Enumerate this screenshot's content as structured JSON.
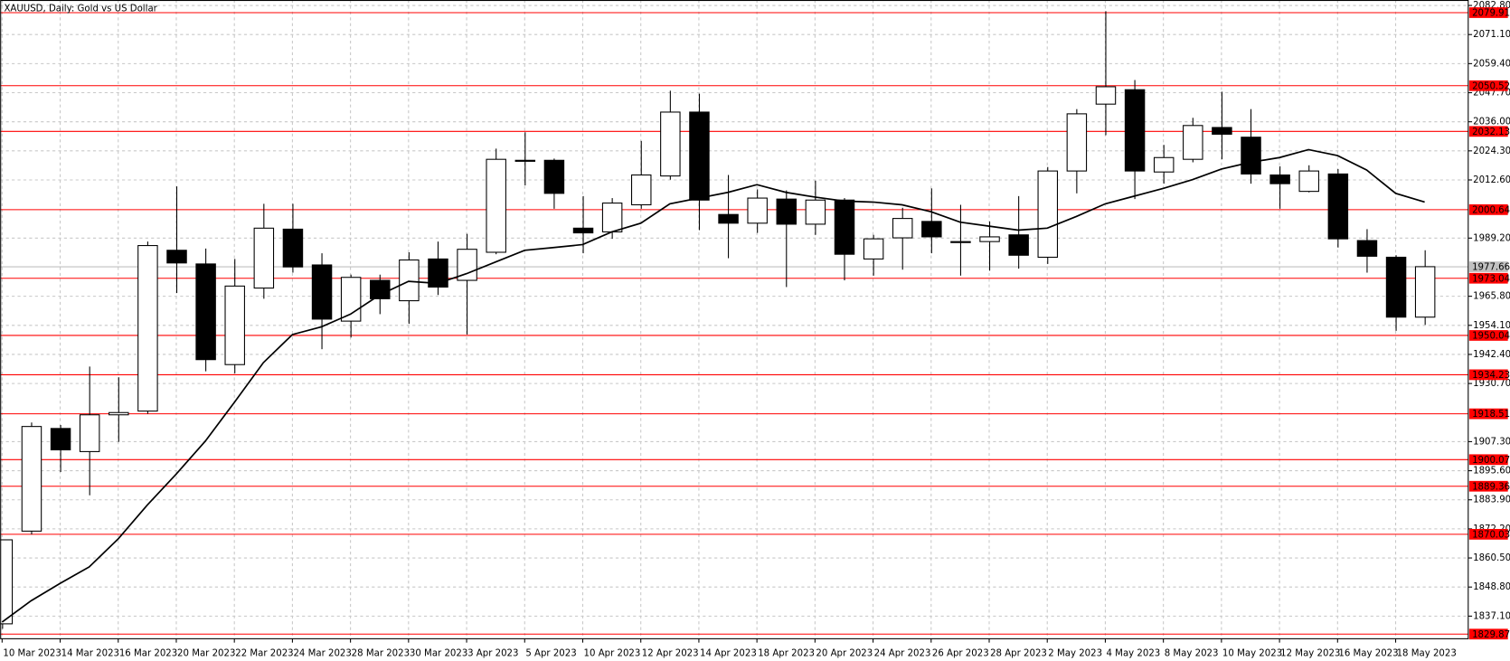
{
  "chart_data": {
    "type": "candlestick",
    "title": "XAUUSD, Daily:  Gold vs US Dollar",
    "categories": [
      "10 Mar 2023",
      null,
      "14 Mar 2023",
      null,
      "16 Mar 2023",
      null,
      "20 Mar 2023",
      null,
      "22 Mar 2023",
      null,
      "24 Mar 2023",
      null,
      "28 Mar 2023",
      null,
      "30 Mar 2023",
      null,
      "3 Apr 2023",
      null,
      "5 Apr 2023",
      null,
      "10 Apr 2023",
      null,
      "12 Apr 2023",
      null,
      "14 Apr 2023",
      null,
      "18 Apr 2023",
      null,
      "20 Apr 2023",
      null,
      "24 Apr 2023",
      null,
      "26 Apr 2023",
      null,
      "28 Apr 2023",
      null,
      "2 May 2023",
      null,
      "4 May 2023",
      null,
      "8 May 2023",
      null,
      "10 May 2023",
      null,
      "12 May 2023",
      null,
      "16 May 2023",
      null,
      "18 May 2023",
      null
    ],
    "open": [
      1834.0,
      1871.3,
      1912.6,
      1903.3,
      1918.1,
      1919.6,
      1984.3,
      1978.8,
      1938.3,
      1969.1,
      1992.8,
      1978.4,
      1955.8,
      1972.2,
      1964.0,
      1980.8,
      1972.2,
      1983.5,
      2020.5,
      2020.5,
      1993.2,
      1991.7,
      2002.6,
      2014.2,
      2039.9,
      1998.7,
      1995.2,
      2004.9,
      1994.8,
      2004.5,
      1980.8,
      1989.3,
      1995.9,
      1987.4,
      1987.8,
      1990.5,
      1981.5,
      2016.2,
      2043.1,
      2048.9,
      2015.8,
      2020.9,
      2033.7,
      2029.8,
      2014.6,
      2008.0,
      2015.0,
      1988.2,
      1981.5,
      1957.4
    ],
    "high": [
      1868.0,
      1915.0,
      1914.0,
      1937.5,
      1933.2,
      1987.8,
      2010.0,
      1985.0,
      1980.8,
      2003.0,
      2003.0,
      1983.1,
      1974.5,
      1974.5,
      1983.5,
      1987.8,
      1990.9,
      2025.2,
      2031.8,
      2021.2,
      2006.1,
      2005.3,
      2028.3,
      2048.5,
      2047.3,
      2014.6,
      2008.8,
      2008.4,
      2012.3,
      2005.3,
      1990.5,
      2001.4,
      2009.2,
      2002.6,
      1995.9,
      2006.1,
      2017.8,
      2041.1,
      2080.5,
      2052.8,
      2026.7,
      2037.6,
      2048.1,
      2041.1,
      2018.1,
      2018.5,
      2017.0,
      1992.8,
      1982.3,
      1984.3
    ],
    "low": [
      1832.0,
      1870.0,
      1895.1,
      1885.7,
      1907.2,
      1918.5,
      1967.1,
      1935.6,
      1934.8,
      1964.8,
      1975.3,
      1944.5,
      1949.2,
      1958.6,
      1954.7,
      1966.3,
      1950.4,
      1982.7,
      2010.4,
      2001.0,
      1983.1,
      1988.9,
      2001.0,
      2012.7,
      1992.4,
      1981.1,
      1991.3,
      1969.5,
      1990.5,
      1972.2,
      1974.1,
      1976.5,
      1983.1,
      1974.1,
      1976.1,
      1976.9,
      1978.8,
      2007.2,
      2030.6,
      2004.9,
      2011.1,
      2019.7,
      2020.9,
      2011.1,
      2001.0,
      2007.6,
      1985.4,
      1975.3,
      1951.9,
      1954.3
    ],
    "close": [
      1867.8,
      1913.4,
      1904.0,
      1918.1,
      1919.0,
      1986.2,
      1979.2,
      1940.3,
      1969.9,
      1993.2,
      1977.6,
      1956.6,
      1973.4,
      1964.8,
      1980.4,
      1969.5,
      1984.7,
      2020.9,
      2020.1,
      2007.2,
      1991.3,
      2003.3,
      2014.6,
      2039.9,
      2004.5,
      1995.2,
      2005.3,
      1994.8,
      2004.5,
      1982.7,
      1988.9,
      1997.1,
      1989.7,
      1987.8,
      1989.7,
      1982.3,
      2016.2,
      2039.2,
      2050.1,
      2016.2,
      2021.6,
      2034.5,
      2031.0,
      2015.0,
      2011.1,
      2016.2,
      1988.9,
      1981.9,
      1957.4,
      1977.7
    ],
    "up_color": "#ffffff",
    "down_color": "#000000",
    "moving_average": {
      "color": "#000000",
      "values": [
        1834.7,
        1843.3,
        1850.3,
        1856.9,
        1868.2,
        1881.8,
        1894.3,
        1907.5,
        1923.1,
        1939.1,
        1950.4,
        1953.5,
        1958.6,
        1966.3,
        1971.8,
        1971.0,
        1974.9,
        1979.6,
        1984.3,
        1985.4,
        1986.6,
        1991.7,
        1995.2,
        2003.0,
        2005.3,
        2007.6,
        2010.7,
        2007.6,
        2005.7,
        2004.1,
        2003.7,
        2002.6,
        1999.8,
        1995.6,
        1994.0,
        1992.4,
        1993.2,
        1997.9,
        2003.0,
        2006.1,
        2009.2,
        2012.7,
        2017.0,
        2019.7,
        2021.6,
        2024.8,
        2022.4,
        2016.6,
        2007.2,
        2003.7
      ]
    },
    "levels": {
      "color": "#ff0000",
      "values": [
        2079.91,
        2050.52,
        2032.13,
        2000.64,
        1973.04,
        1950.04,
        1934.23,
        1918.51,
        1900.07,
        1889.36,
        1870.03,
        1829.87
      ]
    },
    "bid": {
      "color": "#c0c0c0",
      "value": 1977.66
    },
    "ylim": [
      1828,
      2085
    ],
    "yticks": [
      {
        "value": 2082.8,
        "label": "2082.80"
      },
      {
        "value": 2071.1,
        "label": "2071.10"
      },
      {
        "value": 2059.4,
        "label": "2059.40"
      },
      {
        "value": 2047.7,
        "label": "2047.70"
      },
      {
        "value": 2036.0,
        "label": "2036.00"
      },
      {
        "value": 2024.3,
        "label": "2024.30"
      },
      {
        "value": 2012.6,
        "label": "2012.60"
      },
      {
        "value": 1989.2,
        "label": "1989.20"
      },
      {
        "value": 1965.8,
        "label": "1965.80"
      },
      {
        "value": 1954.1,
        "label": "1954.10"
      },
      {
        "value": 1942.4,
        "label": "1942.40"
      },
      {
        "value": 1930.7,
        "label": "1930.70"
      },
      {
        "value": 1907.3,
        "label": "1907.30"
      },
      {
        "value": 1895.6,
        "label": "1895.60"
      },
      {
        "value": 1883.9,
        "label": "1883.90"
      },
      {
        "value": 1872.2,
        "label": "1872.20"
      },
      {
        "value": 1860.5,
        "label": "1860.50"
      },
      {
        "value": 1848.8,
        "label": "1848.80"
      },
      {
        "value": 1837.1,
        "label": "1837.10"
      }
    ],
    "grid": true
  }
}
